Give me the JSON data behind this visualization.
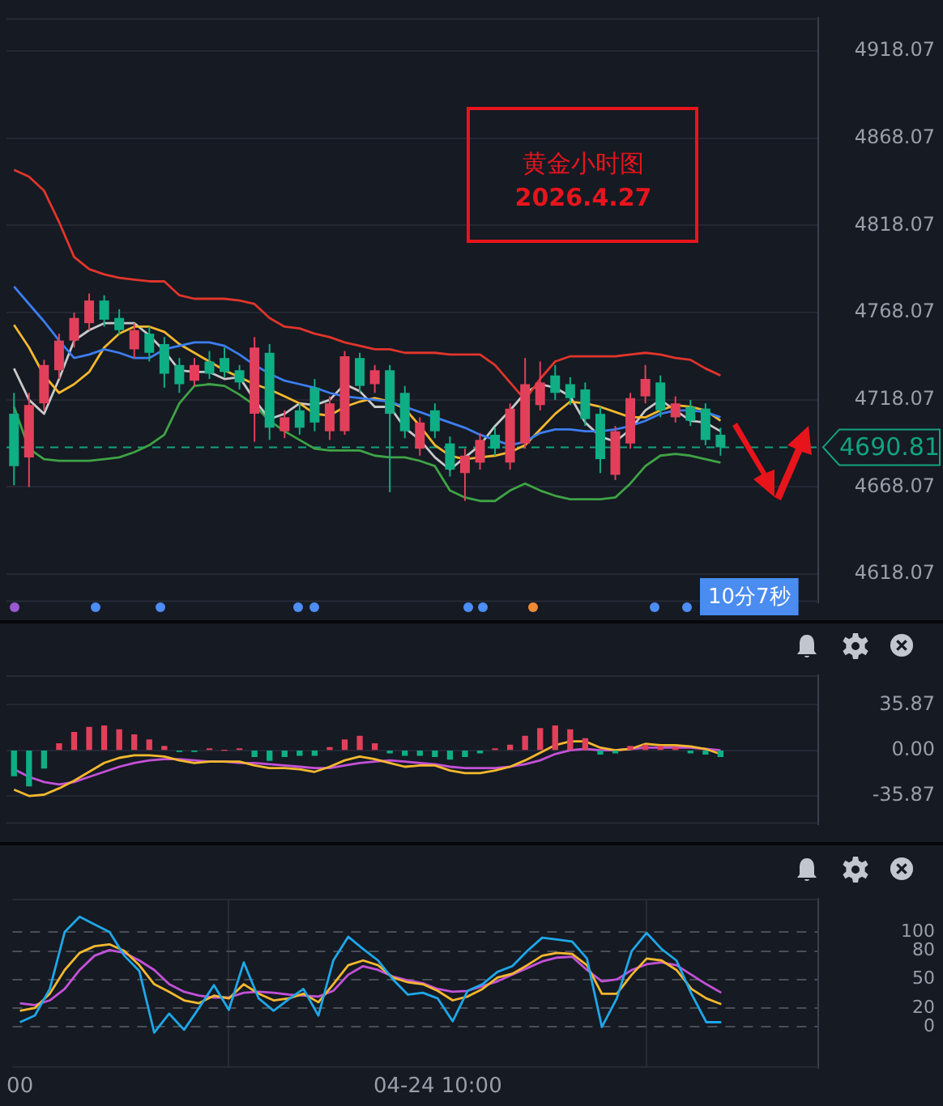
{
  "chart_data": [
    {
      "type": "candlestick",
      "title": "黄金小时图",
      "subtitle": "2026.4.27",
      "categories": [
        null,
        null,
        null,
        null,
        null,
        null,
        null,
        null,
        null,
        null,
        null,
        null,
        null,
        null,
        null,
        null,
        null,
        null,
        null,
        null,
        null,
        null,
        null,
        null,
        null,
        null,
        null,
        null,
        null,
        null,
        null,
        null,
        null,
        null,
        null,
        null,
        null,
        null,
        null,
        null,
        null,
        null,
        null,
        null,
        null,
        null,
        null,
        null,
        null,
        null,
        null,
        null,
        null,
        null
      ],
      "ohlc": [
        [
          4710,
          4722,
          4669,
          4680
        ],
        [
          4685,
          4722,
          4668,
          4715
        ],
        [
          4716,
          4741,
          4712,
          4738
        ],
        [
          4735,
          4756,
          4730,
          4752
        ],
        [
          4752,
          4768,
          4748,
          4765
        ],
        [
          4762,
          4779,
          4758,
          4775
        ],
        [
          4775,
          4778,
          4760,
          4764
        ],
        [
          4765,
          4770,
          4755,
          4758
        ],
        [
          4747,
          4762,
          4742,
          4758
        ],
        [
          4756,
          4760,
          4740,
          4745
        ],
        [
          4750,
          4754,
          4725,
          4733
        ],
        [
          4738,
          4742,
          4722,
          4727
        ],
        [
          4729,
          4742,
          4726,
          4738
        ],
        [
          4740,
          4746,
          4730,
          4733
        ],
        [
          4742,
          4748,
          4731,
          4734
        ],
        [
          4735,
          4738,
          4724,
          4728
        ],
        [
          4710,
          4754,
          4694,
          4748
        ],
        [
          4745,
          4750,
          4695,
          4702
        ],
        [
          4700,
          4712,
          4696,
          4708
        ],
        [
          4712,
          4716,
          4698,
          4702
        ],
        [
          4725,
          4730,
          4700,
          4705
        ],
        [
          4700,
          4720,
          4695,
          4716
        ],
        [
          4700,
          4746,
          4698,
          4743
        ],
        [
          4742,
          4745,
          4722,
          4726
        ],
        [
          4727,
          4738,
          4722,
          4735
        ],
        [
          4735,
          4738,
          4665,
          4710
        ],
        [
          4722,
          4726,
          4696,
          4700
        ],
        [
          4690,
          4708,
          4686,
          4705
        ],
        [
          4712,
          4716,
          4696,
          4700
        ],
        [
          4693,
          4697,
          4674,
          4678
        ],
        [
          4676,
          4690,
          4660,
          4686
        ],
        [
          4682,
          4699,
          4678,
          4695
        ],
        [
          4698,
          4702,
          4686,
          4690
        ],
        [
          4682,
          4716,
          4678,
          4713
        ],
        [
          4693,
          4742,
          4690,
          4727
        ],
        [
          4715,
          4740,
          4712,
          4728
        ],
        [
          4732,
          4738,
          4718,
          4722
        ],
        [
          4727,
          4731,
          4715,
          4719
        ],
        [
          4724,
          4728,
          4703,
          4707
        ],
        [
          4710,
          4714,
          4676,
          4684
        ],
        [
          4675,
          4703,
          4672,
          4700
        ],
        [
          4693,
          4722,
          4690,
          4719
        ],
        [
          4720,
          4738,
          4716,
          4730
        ],
        [
          4728,
          4732,
          4708,
          4712
        ],
        [
          4708,
          4720,
          4705,
          4716
        ],
        [
          4714,
          4718,
          4703,
          4706
        ],
        [
          4713,
          4716,
          4692,
          4695
        ],
        [
          4698,
          4702,
          4686,
          4690.81
        ],
        null,
        null,
        null,
        null,
        null,
        null
      ],
      "colors": [
        "#0fae85",
        "#e2405a",
        "#e2405a",
        "#e2405a",
        "#e2405a",
        "#e2405a",
        "#0fae85",
        "#0fae85",
        "#e2405a",
        "#0fae85",
        "#0fae85",
        "#0fae85",
        "#e2405a",
        "#0fae85",
        "#0fae85",
        "#0fae85",
        "#e2405a",
        "#0fae85",
        "#e2405a",
        "#0fae85",
        "#0fae85",
        "#e2405a",
        "#e2405a",
        "#0fae85",
        "#e2405a",
        "#0fae85",
        "#0fae85",
        "#e2405a",
        "#0fae85",
        "#0fae85",
        "#e2405a",
        "#e2405a",
        "#0fae85",
        "#e2405a",
        "#e2405a",
        "#e2405a",
        "#0fae85",
        "#0fae85",
        "#0fae85",
        "#0fae85",
        "#e2405a",
        "#e2405a",
        "#e2405a",
        "#0fae85",
        "#e2405a",
        "#0fae85",
        "#0fae85",
        "#0fae85",
        null,
        null,
        null,
        null,
        null,
        null
      ],
      "series": [
        {
          "type": "line",
          "color": "#e0352b",
          "values": [
            4850,
            4846,
            4838,
            4820,
            4800,
            4793,
            4790,
            4788,
            4787,
            4786,
            4786,
            4778,
            4776,
            4776,
            4776,
            4775,
            4773,
            4765,
            4760,
            4759,
            4756,
            4754,
            4751,
            4749,
            4747,
            4747,
            4745,
            4745,
            4745,
            4744,
            4744,
            4744,
            4738,
            4728,
            4718,
            4730,
            4740,
            4743,
            4743,
            4743,
            4743,
            4744,
            4745,
            4744,
            4742,
            4741,
            4736,
            4732,
            null,
            null,
            null,
            null,
            null,
            null
          ]
        },
        {
          "type": "line",
          "color": "#3d7ef0",
          "values": [
            4783,
            4773,
            4763,
            4752,
            4742,
            4744,
            4747,
            4745,
            4742,
            4742,
            4747,
            4749,
            4751,
            4751,
            4749,
            4744,
            4738,
            4733,
            4729,
            4727,
            4725,
            4722,
            4720,
            4719,
            4718,
            4717,
            4714,
            4711,
            4708,
            4705,
            4702,
            4698,
            4695,
            4692,
            4694,
            4699,
            4701,
            4701,
            4700,
            4700,
            4701,
            4703,
            4706,
            4710,
            4712,
            4712,
            4711,
            4708,
            null,
            null,
            null,
            null,
            null,
            null
          ]
        },
        {
          "type": "line",
          "color": "#f5b82e",
          "values": [
            4761,
            4748,
            4732,
            4722,
            4727,
            4734,
            4748,
            4756,
            4760,
            4760,
            4757,
            4750,
            4745,
            4740,
            4735,
            4731,
            4727,
            4724,
            4720,
            4716,
            4710,
            4709,
            4714,
            4717,
            4719,
            4717,
            4713,
            4703,
            4692,
            4686,
            4684,
            4685,
            4686,
            4688,
            4692,
            4701,
            4710,
            4717,
            4716,
            4714,
            4711,
            4708,
            4708,
            4712,
            4715,
            4714,
            4712,
            4706,
            null,
            null,
            null,
            null,
            null,
            null
          ]
        },
        {
          "type": "line",
          "color": "#c9c9c9",
          "values": [
            4736,
            4718,
            4710,
            4730,
            4752,
            4758,
            4762,
            4762,
            4762,
            4755,
            4746,
            4735,
            4734,
            4734,
            4730,
            4731,
            4718,
            4707,
            4710,
            4716,
            4715,
            4718,
            4727,
            4723,
            4714,
            4714,
            4702,
            4695,
            4685,
            4678,
            4685,
            4692,
            4703,
            4712,
            4722,
            4727,
            4725,
            4720,
            4705,
            4697,
            4694,
            4701,
            4712,
            4718,
            4712,
            4706,
            4705,
            4700,
            null,
            null,
            null,
            null,
            null,
            null
          ]
        },
        {
          "type": "line",
          "color": "#3fa345",
          "values": [
            4714,
            4690,
            4684,
            4683,
            4683,
            4683,
            4684,
            4685,
            4688,
            4692,
            4698,
            4716,
            4726,
            4727,
            4726,
            4721,
            4715,
            4706,
            4700,
            4695,
            4690,
            4689,
            4689,
            4689,
            4686,
            4685,
            4685,
            4683,
            4680,
            4666,
            4662,
            4660,
            4660,
            4666,
            4670,
            4666,
            4663,
            4661,
            4661,
            4661,
            4662,
            4670,
            4680,
            4686,
            4687,
            4686,
            4684,
            4682,
            null,
            null,
            null,
            null,
            null,
            null
          ]
        }
      ],
      "ylim": [
        4602,
        4937
      ],
      "yticks": [
        4618.07,
        4668.07,
        4718.07,
        4768.07,
        4818.07,
        4868.07,
        4918.07
      ],
      "ref_lines": [
        {
          "axis": "y",
          "value": 4690.81,
          "label": "4690.81",
          "color": "#13a37f",
          "line_style": "dashed"
        }
      ],
      "annotations": [
        "10分7秒"
      ],
      "tick_labels": "y",
      "grid": "y"
    },
    {
      "type": "bar",
      "categories": [
        null,
        null,
        null,
        null,
        null,
        null,
        null,
        null,
        null,
        null,
        null,
        null,
        null,
        null,
        null,
        null,
        null,
        null,
        null,
        null,
        null,
        null,
        null,
        null,
        null,
        null,
        null,
        null,
        null,
        null,
        null,
        null,
        null,
        null,
        null,
        null,
        null,
        null,
        null,
        null,
        null,
        null,
        null,
        null,
        null,
        null,
        null,
        null,
        null,
        null,
        null,
        null,
        null,
        null
      ],
      "series": [
        {
          "type": "bar",
          "values": [
            -20,
            -28,
            -14,
            5,
            14,
            18,
            19,
            16,
            12,
            8,
            3,
            -1,
            -1,
            1,
            0,
            1,
            -5,
            -8,
            -5,
            -4,
            -4,
            2,
            8,
            11,
            5,
            -2,
            -4,
            -4,
            -5,
            -7,
            -5,
            -2,
            1,
            4,
            11,
            17,
            19,
            16,
            9,
            -3,
            -2,
            3,
            4,
            3,
            2,
            -2,
            -3,
            -5,
            null,
            null,
            null,
            null,
            null,
            null
          ],
          "colors": [
            "#0fae85",
            "#0fae85",
            "#0fae85",
            "#e2405a",
            "#e2405a",
            "#e2405a",
            "#e2405a",
            "#e2405a",
            "#e2405a",
            "#e2405a",
            "#e2405a",
            "#0fae85",
            "#0fae85",
            "#e2405a",
            "#e2405a",
            "#e2405a",
            "#0fae85",
            "#0fae85",
            "#0fae85",
            "#0fae85",
            "#0fae85",
            "#e2405a",
            "#e2405a",
            "#e2405a",
            "#e2405a",
            "#0fae85",
            "#0fae85",
            "#0fae85",
            "#0fae85",
            "#0fae85",
            "#0fae85",
            "#0fae85",
            "#e2405a",
            "#e2405a",
            "#e2405a",
            "#e2405a",
            "#e2405a",
            "#e2405a",
            "#e2405a",
            "#0fae85",
            "#0fae85",
            "#e2405a",
            "#e2405a",
            "#e2405a",
            "#e2405a",
            "#0fae85",
            "#0fae85",
            "#0fae85",
            null,
            null,
            null,
            null,
            null,
            null
          ]
        },
        {
          "type": "line",
          "color": "#f5b82e",
          "values": [
            -31,
            -36,
            -35,
            -30,
            -24,
            -17,
            -10,
            -6,
            -4,
            -4,
            -5,
            -8,
            -10,
            -9,
            -9,
            -9,
            -12,
            -14,
            -14,
            -15,
            -17,
            -13,
            -8,
            -5,
            -7,
            -10,
            -13,
            -12,
            -12,
            -16,
            -18,
            -18,
            -16,
            -13,
            -8,
            -2,
            4,
            7,
            7,
            2,
            0,
            1,
            5,
            4,
            4,
            3,
            1,
            -3,
            null,
            null,
            null,
            null,
            null,
            null
          ]
        },
        {
          "type": "line",
          "color": "#c451d8",
          "values": [
            -15,
            -21,
            -25,
            -27,
            -25,
            -21,
            -17,
            -13,
            -10,
            -8,
            -7,
            -7,
            -8,
            -9,
            -9,
            -10,
            -10,
            -11,
            -12,
            -13,
            -14,
            -14,
            -12,
            -10,
            -9,
            -8,
            -9,
            -10,
            -11,
            -13,
            -14,
            -14,
            -14,
            -13,
            -11,
            -8,
            -3,
            0,
            1,
            0,
            0,
            1,
            2,
            2,
            2,
            2,
            1,
            0,
            null,
            null,
            null,
            null,
            null,
            null
          ]
        }
      ],
      "ylim": [
        -58,
        59
      ],
      "yticks": [
        -35.87,
        {
          "value": 0,
          "label": "0.00"
        },
        35.87
      ],
      "tick_labels": "y",
      "grid": "y"
    },
    {
      "type": "line",
      "categories": [
        "00",
        null,
        null,
        null,
        null,
        null,
        null,
        null,
        null,
        null,
        null,
        null,
        null,
        null,
        null,
        null,
        null,
        null,
        null,
        null,
        null,
        null,
        null,
        null,
        null,
        null,
        null,
        null,
        "04-24 10:00",
        null,
        null,
        null,
        null,
        null,
        null,
        null,
        null,
        null,
        null,
        null,
        null,
        null,
        null,
        null,
        null,
        null,
        null,
        null,
        null,
        null,
        null,
        null,
        null,
        null
      ],
      "series": [
        {
          "color": "#1ea7e8",
          "values": [
            5,
            12,
            40,
            100,
            116,
            108,
            100,
            75,
            59,
            -6,
            14,
            -3,
            20,
            44,
            18,
            68,
            30,
            17,
            29,
            40,
            12,
            70,
            95,
            82,
            70,
            50,
            34,
            36,
            30,
            6,
            38,
            45,
            58,
            64,
            80,
            94,
            92,
            90,
            72,
            0,
            30,
            80,
            99,
            82,
            70,
            35,
            5,
            5,
            null,
            null,
            null,
            null,
            null,
            null
          ]
        },
        {
          "color": "#f5b82e",
          "values": [
            17,
            20,
            35,
            60,
            78,
            85,
            87,
            80,
            65,
            45,
            37,
            28,
            25,
            33,
            30,
            45,
            35,
            28,
            30,
            35,
            26,
            45,
            65,
            70,
            65,
            52,
            47,
            45,
            38,
            28,
            32,
            40,
            52,
            56,
            65,
            75,
            78,
            77,
            65,
            35,
            35,
            55,
            72,
            70,
            60,
            40,
            30,
            24,
            null,
            null,
            null,
            null,
            null,
            null
          ]
        },
        {
          "color": "#c451d8",
          "values": [
            25,
            23,
            28,
            40,
            60,
            75,
            81,
            78,
            70,
            60,
            45,
            37,
            33,
            31,
            31,
            36,
            37,
            36,
            34,
            33,
            32,
            38,
            55,
            64,
            60,
            53,
            49,
            46,
            40,
            37,
            38,
            43,
            48,
            55,
            62,
            69,
            73,
            74,
            60,
            48,
            50,
            60,
            66,
            68,
            65,
            55,
            45,
            36,
            null,
            null,
            null,
            null,
            null,
            null
          ]
        }
      ],
      "ylim": [
        -43,
        135
      ],
      "yticks": [
        0,
        20,
        50,
        80,
        100
      ],
      "grid": true
    }
  ]
}
